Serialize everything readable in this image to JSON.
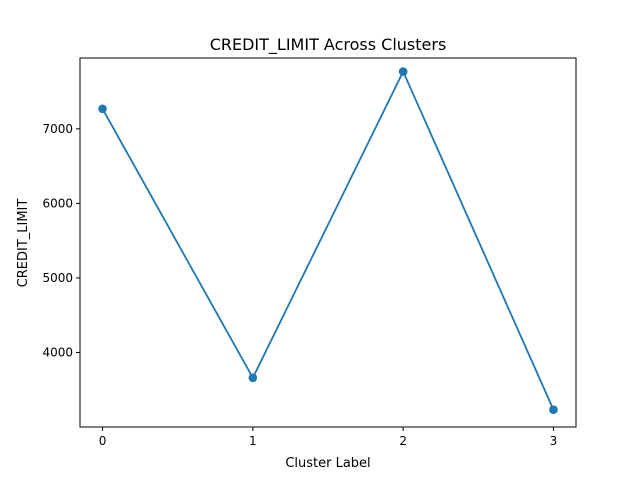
{
  "chart_data": {
    "type": "line",
    "title": "CREDIT_LIMIT Across Clusters",
    "xlabel": "Cluster Label",
    "ylabel": "CREDIT_LIMIT",
    "x": [
      0,
      1,
      2,
      3
    ],
    "xticks": [
      "0",
      "1",
      "2",
      "3"
    ],
    "yticks": [
      4000,
      5000,
      6000,
      7000
    ],
    "ytick_labels": [
      "4000",
      "5000",
      "6000",
      "7000"
    ],
    "xlim": [
      -0.15,
      3.15
    ],
    "ylim": [
      3000,
      7950
    ],
    "grid": false,
    "marker": "circle",
    "series": [
      {
        "values": [
          7268,
          3660,
          7768,
          3232
        ],
        "color": "#1f77b4"
      }
    ]
  }
}
